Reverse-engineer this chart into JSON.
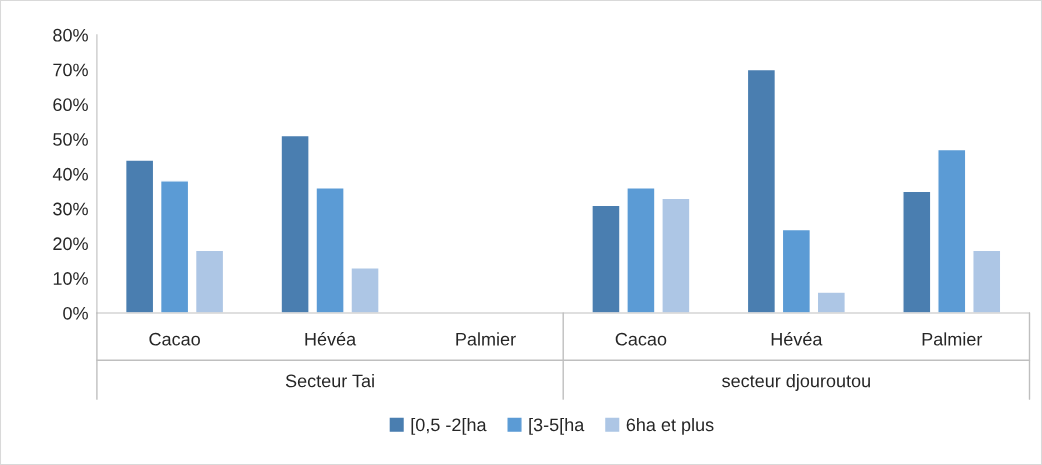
{
  "chart_data": {
    "type": "bar",
    "categories": [
      "Cacao",
      "Hévéa",
      "Palmier",
      "Cacao",
      "Hévéa",
      "Palmier"
    ],
    "series": [
      {
        "name": "[0,5 -2[ha",
        "color": "#4a7eb0",
        "values": [
          44,
          51,
          null,
          31,
          70,
          35
        ]
      },
      {
        "name": "[3-5[ha",
        "color": "#5b9bd5",
        "values": [
          38,
          36,
          null,
          36,
          24,
          47
        ]
      },
      {
        "name": "6ha et plus",
        "color": "#adc6e5",
        "values": [
          18,
          13,
          null,
          33,
          6,
          18
        ]
      }
    ],
    "annotations": [
      "Secteur Tai",
      "secteur djouroutou"
    ],
    "ylim": [
      0,
      80
    ],
    "yticks": [
      {
        "value": 0,
        "label": "0%"
      },
      {
        "value": 10,
        "label": "10%"
      },
      {
        "value": 20,
        "label": "20%"
      },
      {
        "value": 30,
        "label": "30%"
      },
      {
        "value": 40,
        "label": "40%"
      },
      {
        "value": 50,
        "label": "50%"
      },
      {
        "value": 60,
        "label": "60%"
      },
      {
        "value": 70,
        "label": "70%"
      },
      {
        "value": 80,
        "label": "80%"
      }
    ],
    "grid": false,
    "legend": "bottom"
  }
}
